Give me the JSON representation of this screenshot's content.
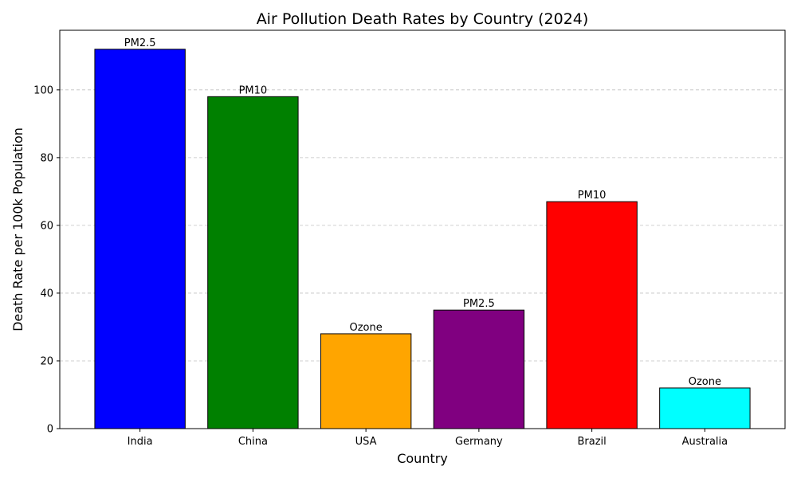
{
  "chart_data": {
    "type": "bar",
    "title": "Air Pollution Death Rates by Country (2024)",
    "xlabel": "Country",
    "ylabel": "Death Rate per 100k Population",
    "categories": [
      "India",
      "China",
      "USA",
      "Germany",
      "Brazil",
      "Australia"
    ],
    "values": [
      112,
      98,
      28,
      35,
      67,
      12
    ],
    "bar_labels": [
      "PM2.5",
      "PM10",
      "Ozone",
      "PM2.5",
      "PM10",
      "Ozone"
    ],
    "colors": [
      "#0000ff",
      "#008000",
      "#ffa500",
      "#800080",
      "#ff0000",
      "#00ffff"
    ],
    "ylim": [
      0,
      117.6
    ],
    "yticks": [
      0,
      20,
      40,
      60,
      80,
      100
    ],
    "grid": "y-dashed",
    "legend": "none"
  }
}
